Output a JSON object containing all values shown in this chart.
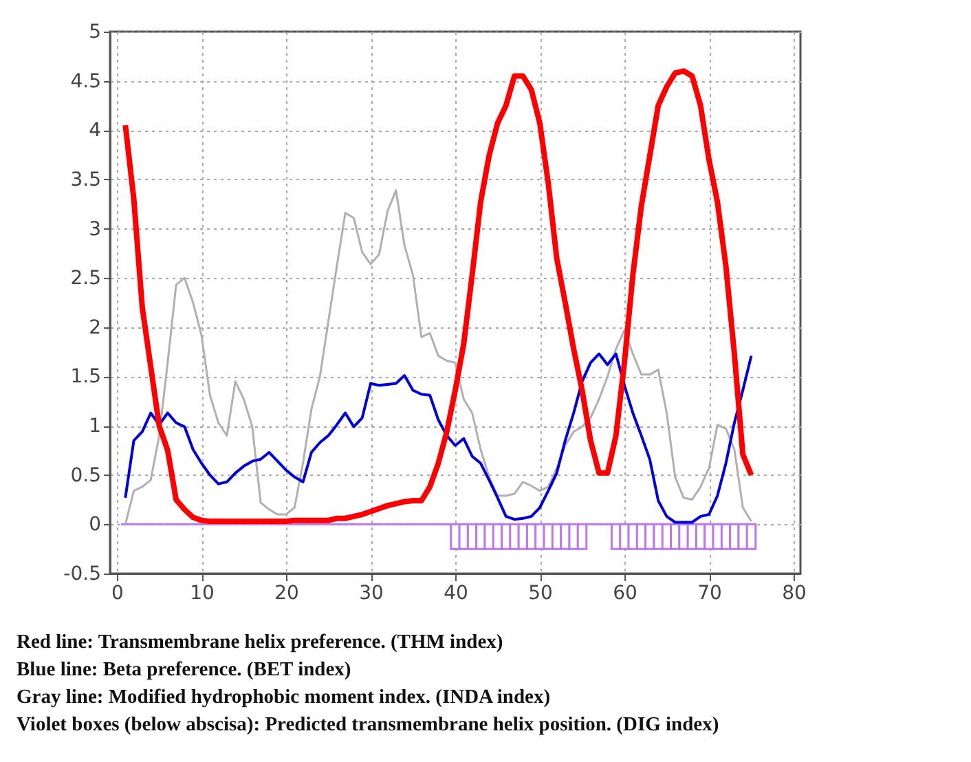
{
  "chart_data": {
    "type": "line",
    "x": [
      1,
      2,
      3,
      4,
      5,
      6,
      7,
      8,
      9,
      10,
      11,
      12,
      13,
      14,
      15,
      16,
      17,
      18,
      19,
      20,
      21,
      22,
      23,
      24,
      25,
      26,
      27,
      28,
      29,
      30,
      31,
      32,
      33,
      34,
      35,
      36,
      37,
      38,
      39,
      40,
      41,
      42,
      43,
      44,
      45,
      46,
      47,
      48,
      49,
      50,
      51,
      52,
      53,
      54,
      55,
      56,
      57,
      58,
      59,
      60,
      61,
      62,
      63,
      64,
      65,
      66,
      67,
      68,
      69,
      70,
      71,
      72,
      73,
      74,
      75
    ],
    "series": [
      {
        "type": "bar",
        "color": "#bb77ee",
        "values": [
          0,
          0,
          0,
          0,
          0,
          0,
          0,
          0,
          0,
          0,
          0,
          0,
          0,
          0,
          0,
          0,
          0,
          0,
          0,
          0,
          0,
          0,
          0,
          0,
          0,
          0,
          0,
          0,
          0,
          0,
          0,
          0,
          0,
          0,
          0,
          0,
          0,
          0,
          0,
          -0.25,
          -0.25,
          -0.25,
          -0.25,
          -0.25,
          -0.25,
          -0.25,
          -0.25,
          -0.25,
          -0.25,
          -0.25,
          -0.25,
          -0.25,
          -0.25,
          -0.25,
          -0.25,
          0,
          0,
          0,
          -0.25,
          -0.25,
          -0.25,
          -0.25,
          -0.25,
          -0.25,
          -0.25,
          -0.25,
          -0.25,
          -0.25,
          -0.25,
          -0.25,
          -0.25,
          -0.25,
          -0.25,
          -0.25,
          -0.25
        ]
      },
      {
        "color": "#b0b0b0",
        "values": [
          0,
          0.34,
          0.38,
          0.45,
          0.9,
          1.64,
          2.43,
          2.5,
          2.25,
          1.92,
          1.31,
          1.03,
          0.9,
          1.45,
          1.27,
          0.99,
          0.22,
          0.15,
          0.1,
          0.1,
          0.17,
          0.62,
          1.17,
          1.5,
          2.06,
          2.62,
          3.16,
          3.11,
          2.76,
          2.64,
          2.74,
          3.18,
          3.39,
          2.83,
          2.53,
          1.9,
          1.94,
          1.71,
          1.66,
          1.64,
          1.27,
          1.13,
          0.76,
          0.48,
          0.29,
          0.29,
          0.31,
          0.43,
          0.39,
          0.34,
          0.38,
          0.57,
          0.8,
          0.94,
          0.99,
          1.08,
          1.27,
          1.5,
          1.78,
          1.97,
          1.73,
          1.52,
          1.52,
          1.57,
          1.13,
          0.48,
          0.27,
          0.25,
          0.38,
          0.57,
          1.01,
          0.97,
          0.76,
          0.17,
          0.03
        ]
      },
      {
        "color": "#0000dd",
        "values": [
          0.27,
          0.85,
          0.94,
          1.13,
          1.01,
          1.13,
          1.03,
          0.99,
          0.76,
          0.62,
          0.5,
          0.41,
          0.43,
          0.52,
          0.59,
          0.64,
          0.66,
          0.73,
          0.64,
          0.55,
          0.48,
          0.43,
          0.73,
          0.83,
          0.9,
          1.01,
          1.13,
          0.99,
          1.08,
          1.43,
          1.41,
          1.42,
          1.43,
          1.51,
          1.36,
          1.32,
          1.31,
          1.06,
          0.9,
          0.8,
          0.87,
          0.69,
          0.62,
          0.45,
          0.27,
          0.08,
          0.05,
          0.06,
          0.08,
          0.17,
          0.34,
          0.52,
          0.85,
          1.13,
          1.45,
          1.64,
          1.73,
          1.62,
          1.73,
          1.41,
          1.13,
          0.9,
          0.66,
          0.24,
          0.08,
          0.02,
          0.02,
          0.02,
          0.08,
          0.1,
          0.29,
          0.62,
          1.03,
          1.36,
          1.71
        ]
      },
      {
        "color": "#ff0000",
        "values": [
          4.05,
          3.3,
          2.2,
          1.6,
          1.0,
          0.75,
          0.25,
          0.15,
          0.07,
          0.04,
          0.03,
          0.03,
          0.03,
          0.03,
          0.03,
          0.03,
          0.03,
          0.03,
          0.03,
          0.03,
          0.04,
          0.04,
          0.04,
          0.04,
          0.04,
          0.06,
          0.06,
          0.08,
          0.1,
          0.13,
          0.16,
          0.19,
          0.21,
          0.23,
          0.24,
          0.24,
          0.38,
          0.62,
          0.94,
          1.36,
          1.83,
          2.53,
          3.27,
          3.74,
          4.07,
          4.25,
          4.55,
          4.55,
          4.41,
          4.07,
          3.46,
          2.7,
          2.25,
          1.78,
          1.36,
          0.85,
          0.52,
          0.52,
          0.9,
          1.64,
          2.53,
          3.23,
          3.74,
          4.25,
          4.44,
          4.58,
          4.6,
          4.55,
          4.25,
          3.7,
          3.27,
          2.62,
          1.73,
          0.71,
          0.5
        ]
      }
    ],
    "xlim": [
      0,
      80
    ],
    "xticks": [
      0,
      10,
      20,
      30,
      40,
      50,
      60,
      70,
      80
    ],
    "ylim": [
      -0.5,
      5
    ],
    "yticks": [
      -0.5,
      0,
      0.5,
      1,
      1.5,
      2,
      2.5,
      3,
      3.5,
      4,
      4.5,
      5
    ],
    "grid": true,
    "annotations": [
      "Red line: Transmembrane helix preference. (THM index)",
      "Blue line: Beta preference. (BET index)",
      "Gray line: Modified hydrophobic moment index. (INDA index)",
      "Violet boxes (below abscisa): Predicted transmembrane helix position. (DIG index)"
    ]
  }
}
